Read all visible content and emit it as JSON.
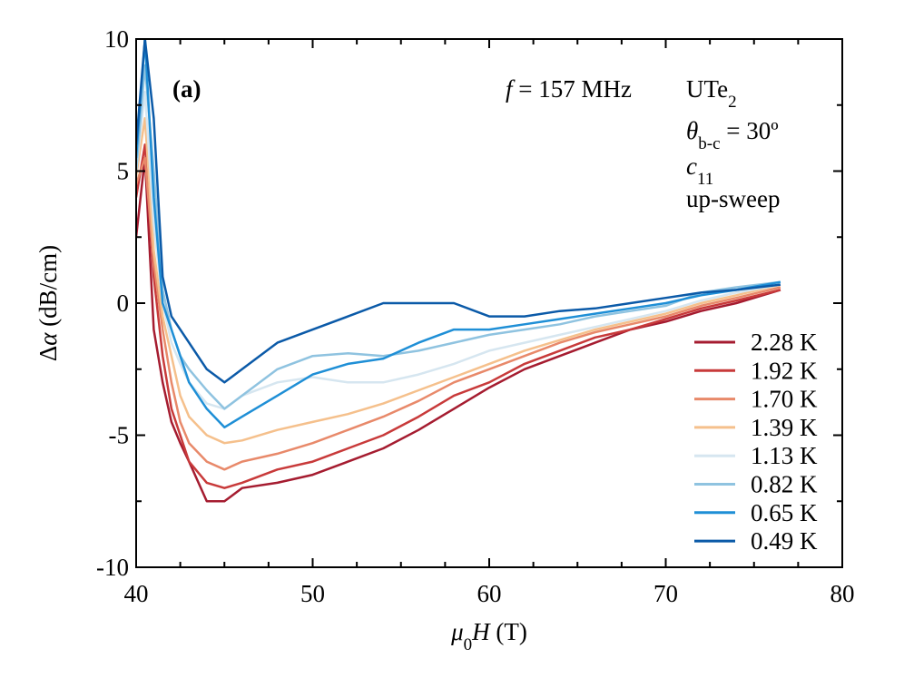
{
  "chart_data": {
    "type": "line",
    "x_label": [
      {
        "text": "μ",
        "style": "italic"
      },
      {
        "text": "0",
        "style": "sub"
      },
      {
        "text": "H",
        "style": "italic"
      },
      {
        "text": " (T)",
        "style": "normal"
      }
    ],
    "y_label": [
      {
        "text": "Δ",
        "style": "normal"
      },
      {
        "text": "α",
        "style": "italic"
      },
      {
        "text": " (dB/cm)",
        "style": "normal"
      }
    ],
    "annotations": [
      {
        "parts": [
          {
            "text": "(a)",
            "style": "bold"
          }
        ]
      },
      {
        "parts": [
          {
            "text": "f",
            "style": "italic"
          },
          {
            "text": " = 157 MHz",
            "style": "normal"
          }
        ]
      },
      {
        "parts": [
          {
            "text": "UTe",
            "style": "normal"
          },
          {
            "text": "2",
            "style": "sub"
          }
        ]
      },
      {
        "parts": [
          {
            "text": "θ",
            "style": "italic"
          },
          {
            "text": "b-c",
            "style": "sub"
          },
          {
            "text": " = 30º",
            "style": "normal"
          }
        ]
      },
      {
        "parts": [
          {
            "text": "c",
            "style": "italic"
          },
          {
            "text": "11",
            "style": "sub"
          }
        ]
      },
      {
        "parts": [
          {
            "text": "up-sweep",
            "style": "normal"
          }
        ]
      }
    ],
    "x": [
      40,
      40.5,
      41,
      41.5,
      42,
      42.5,
      43,
      44,
      45,
      46,
      48,
      50,
      52,
      54,
      56,
      58,
      60,
      62,
      64,
      66,
      68,
      70,
      72,
      74,
      76.5
    ],
    "series": [
      {
        "name": "2.28 K",
        "color": "#a51c30",
        "values": [
          2.5,
          5.5,
          -1,
          -3,
          -4.5,
          -5.3,
          -6,
          -7.5,
          -7.5,
          -7,
          -6.8,
          -6.5,
          -6,
          -5.5,
          -4.8,
          -4,
          -3.2,
          -2.5,
          -2,
          -1.5,
          -1,
          -0.7,
          -0.3,
          0,
          0.5
        ]
      },
      {
        "name": "1.92 K",
        "color": "#c83a3a",
        "values": [
          4,
          6,
          1,
          -2,
          -4,
          -5,
          -6,
          -6.8,
          -7,
          -6.8,
          -6.3,
          -6,
          -5.5,
          -5,
          -4.3,
          -3.5,
          -3,
          -2.3,
          -1.8,
          -1.3,
          -1,
          -0.6,
          -0.2,
          0.1,
          0.5
        ]
      },
      {
        "name": "1.70 K",
        "color": "#e8896a",
        "values": [
          4.5,
          5.5,
          1.5,
          -1,
          -3,
          -4.5,
          -5.3,
          -6,
          -6.3,
          -6,
          -5.7,
          -5.3,
          -4.8,
          -4.3,
          -3.7,
          -3,
          -2.5,
          -2,
          -1.5,
          -1.1,
          -0.8,
          -0.5,
          -0.1,
          0.2,
          0.6
        ]
      },
      {
        "name": "1.39 K",
        "color": "#f5c08c",
        "values": [
          4.8,
          7,
          2,
          -0.5,
          -2,
          -3.5,
          -4.3,
          -5,
          -5.3,
          -5.2,
          -4.8,
          -4.5,
          -4.2,
          -3.8,
          -3.3,
          -2.8,
          -2.3,
          -1.8,
          -1.4,
          -1,
          -0.7,
          -0.4,
          0,
          0.3,
          0.7
        ]
      },
      {
        "name": "1.13 K",
        "color": "#d6e6f0",
        "values": [
          5,
          8,
          3,
          0,
          -1.5,
          -2.3,
          -3,
          -3.8,
          -4,
          -3.5,
          -3,
          -2.8,
          -3,
          -3,
          -2.7,
          -2.3,
          -1.8,
          -1.5,
          -1.2,
          -0.9,
          -0.6,
          -0.3,
          0.1,
          0.4,
          0.7
        ]
      },
      {
        "name": "0.82 K",
        "color": "#8fc3e0",
        "values": [
          5,
          9,
          5,
          0.5,
          -1,
          -2,
          -2.5,
          -3.3,
          -4,
          -3.5,
          -2.5,
          -2,
          -1.9,
          -2,
          -1.8,
          -1.5,
          -1.2,
          -1,
          -0.8,
          -0.5,
          -0.3,
          -0.1,
          0.4,
          0.6,
          0.8
        ]
      },
      {
        "name": "0.65 K",
        "color": "#1f8fd6",
        "values": [
          5.5,
          10,
          4,
          0,
          -1,
          -2,
          -3,
          -4,
          -4.7,
          -4.3,
          -3.5,
          -2.7,
          -2.3,
          -2.1,
          -1.5,
          -1,
          -1,
          -0.8,
          -0.6,
          -0.4,
          -0.2,
          0,
          0.3,
          0.5,
          0.8
        ]
      },
      {
        "name": "0.49 K",
        "color": "#0b5aa8",
        "values": [
          6,
          10,
          7,
          1,
          -0.5,
          -1,
          -1.5,
          -2.5,
          -3,
          -2.5,
          -1.5,
          -1,
          -0.5,
          0,
          0,
          0,
          -0.5,
          -0.5,
          -0.3,
          -0.2,
          0,
          0.2,
          0.4,
          0.5,
          0.7
        ]
      }
    ],
    "xlim": [
      40,
      80
    ],
    "ylim": [
      -10,
      10
    ],
    "xticks": [
      40,
      50,
      60,
      70,
      80
    ],
    "yticks": [
      -10,
      -5,
      0,
      5,
      10
    ],
    "x_minor_ticks": [
      42.5,
      45,
      47.5,
      52.5,
      55,
      57.5,
      62.5,
      65,
      67.5,
      72.5,
      75,
      77.5
    ],
    "y_minor_ticks": [
      -7.5,
      -2.5,
      2.5,
      7.5
    ],
    "legend": "lower right"
  }
}
